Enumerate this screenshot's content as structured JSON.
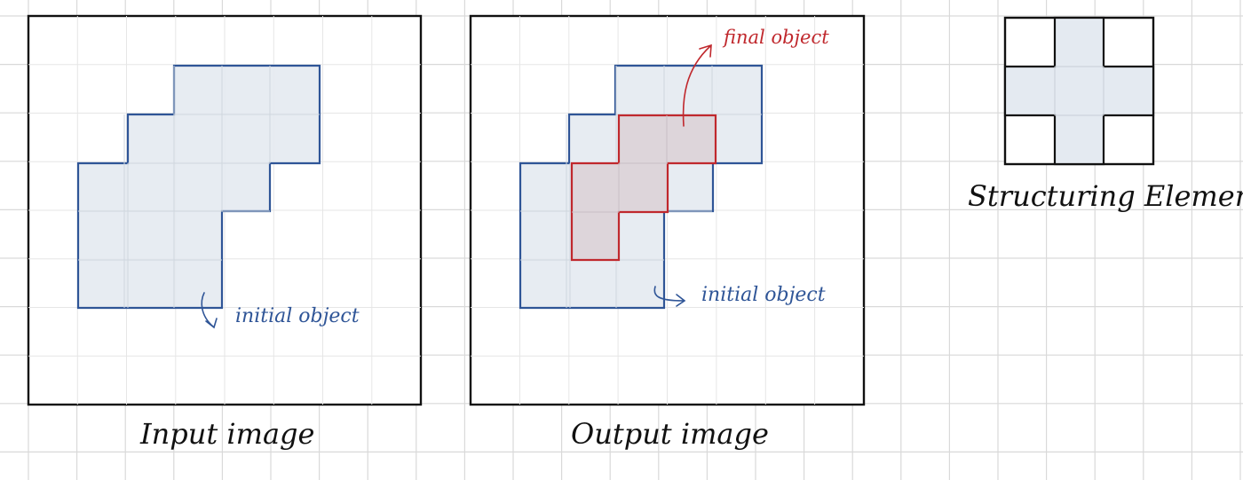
{
  "colors": {
    "background": "#ffffff",
    "grid": "#d9d9d9",
    "frame": "#111111",
    "initial_outline": "#2f5597",
    "initial_fill": "#e4eaf1",
    "final_outline": "#c0282d",
    "final_fill": "#ddd5da",
    "caption_text": "#111111"
  },
  "panels": {
    "input": {
      "caption": "Input image",
      "annotation": "initial object"
    },
    "output": {
      "caption": "Output image",
      "annotation_initial": "initial object",
      "annotation_final": "final object"
    },
    "structuring": {
      "caption": "Structuring Element"
    }
  }
}
